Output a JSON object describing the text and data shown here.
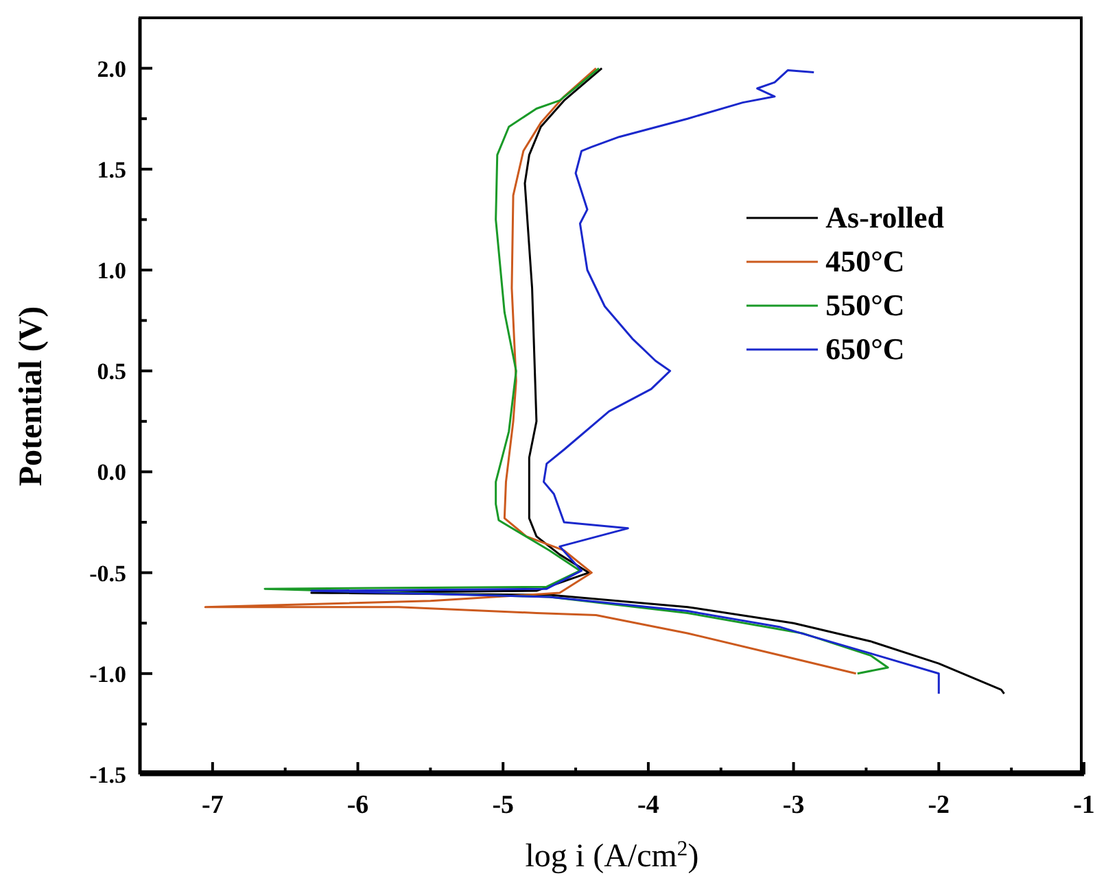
{
  "chart_data": {
    "type": "line",
    "xlabel": "log i (A/cm$^{2}$)",
    "ylabel": "Potential (V)",
    "xlim": [
      -7.5,
      -1
    ],
    "ylim": [
      -1.5,
      2.25
    ],
    "xticks": [
      -7,
      {
        "value": -6.5,
        "label": null
      },
      -6,
      {
        "value": -5.5,
        "label": null
      },
      -5,
      {
        "value": -4.5,
        "label": null
      },
      -4,
      {
        "value": -3.5,
        "label": null
      },
      -3,
      {
        "value": -2.5,
        "label": null
      },
      -2,
      {
        "value": -1.5,
        "label": null
      },
      -1
    ],
    "yticks": [
      {
        "value": -1.5,
        "label": "-1.5"
      },
      {
        "value": -1.25,
        "label": null
      },
      {
        "value": -1,
        "label": "-1.0"
      },
      {
        "value": -0.75,
        "label": null
      },
      {
        "value": -0.5,
        "label": "-0.5"
      },
      {
        "value": -0.25,
        "label": null
      },
      {
        "value": 0,
        "label": "0.0"
      },
      {
        "value": 0.25,
        "label": null
      },
      {
        "value": 0.5,
        "label": "0.5"
      },
      {
        "value": 0.75,
        "label": null
      },
      {
        "value": 1,
        "label": "1.0"
      },
      {
        "value": 1.25,
        "label": null
      },
      {
        "value": 1.5,
        "label": "1.5"
      },
      {
        "value": 1.75,
        "label": null
      },
      {
        "value": 2,
        "label": "2.0"
      }
    ],
    "grid": false,
    "legend": "right",
    "line_style": "solid",
    "marker": "none",
    "series": [
      {
        "name": "As-rolled",
        "color": "#000000",
        "x": [
          -1.55,
          -1.57,
          -2.0,
          -2.47,
          -3.0,
          -3.73,
          -4.68,
          -4.77,
          -6.32,
          -4.77,
          -4.41,
          -4.61,
          -4.77,
          -4.82,
          -4.82,
          -4.77,
          -4.8,
          -4.85,
          -4.82,
          -4.74,
          -4.58,
          -4.32
        ],
        "values": [
          -1.1,
          -1.08,
          -0.95,
          -0.84,
          -0.75,
          -0.67,
          -0.61,
          -0.61,
          -0.6,
          -0.59,
          -0.5,
          -0.41,
          -0.32,
          -0.23,
          0.07,
          0.25,
          0.91,
          1.43,
          1.57,
          1.71,
          1.84,
          2.0
        ]
      },
      {
        "name": "450°C",
        "color": "#cc5a1e",
        "x": [
          -2.57,
          -3.09,
          -3.73,
          -4.36,
          -4.77,
          -5.72,
          -7.05,
          -5.5,
          -4.61,
          -4.39,
          -4.58,
          -4.84,
          -4.99,
          -4.98,
          -4.93,
          -4.91,
          -4.94,
          -4.93,
          -4.86,
          -4.74,
          -4.58,
          -4.36
        ],
        "values": [
          -1.0,
          -0.91,
          -0.8,
          -0.71,
          -0.7,
          -0.67,
          -0.67,
          -0.64,
          -0.6,
          -0.5,
          -0.39,
          -0.32,
          -0.23,
          -0.05,
          0.25,
          0.45,
          0.91,
          1.37,
          1.59,
          1.73,
          1.86,
          2.0
        ]
      },
      {
        "name": "550°C",
        "color": "#1a9a28",
        "x": [
          -2.56,
          -2.35,
          -2.47,
          -2.94,
          -3.73,
          -4.68,
          -6.64,
          -4.7,
          -4.47,
          -4.68,
          -5.03,
          -5.05,
          -5.05,
          -4.96,
          -4.91,
          -4.99,
          -5.05,
          -5.04,
          -4.96,
          -4.77,
          -4.61,
          -4.49,
          -4.34
        ],
        "values": [
          -1.0,
          -0.97,
          -0.91,
          -0.8,
          -0.7,
          -0.62,
          -0.58,
          -0.57,
          -0.49,
          -0.39,
          -0.24,
          -0.16,
          -0.05,
          0.2,
          0.5,
          0.79,
          1.25,
          1.57,
          1.71,
          1.8,
          1.84,
          1.91,
          2.0
        ]
      },
      {
        "name": "650°C",
        "color": "#1a28cc",
        "x": [
          -2.0,
          -2.0,
          -2.47,
          -3.09,
          -3.73,
          -4.68,
          -6.32,
          -4.7,
          -4.46,
          -4.61,
          -4.14,
          -4.58,
          -4.65,
          -4.72,
          -4.7,
          -4.58,
          -4.27,
          -3.98,
          -3.85,
          -3.95,
          -4.11,
          -4.3,
          -4.42,
          -4.47,
          -4.42,
          -4.5,
          -4.46,
          -4.39,
          -4.2,
          -3.73,
          -3.35,
          -3.13,
          -3.25,
          -3.13,
          -3.04,
          -2.86
        ],
        "values": [
          -1.1,
          -1.0,
          -0.9,
          -0.77,
          -0.69,
          -0.62,
          -0.59,
          -0.58,
          -0.49,
          -0.37,
          -0.28,
          -0.25,
          -0.11,
          -0.05,
          0.04,
          0.11,
          0.3,
          0.41,
          0.5,
          0.55,
          0.66,
          0.82,
          1.0,
          1.23,
          1.3,
          1.48,
          1.59,
          1.61,
          1.66,
          1.75,
          1.83,
          1.86,
          1.9,
          1.93,
          1.99,
          1.98
        ]
      }
    ]
  }
}
